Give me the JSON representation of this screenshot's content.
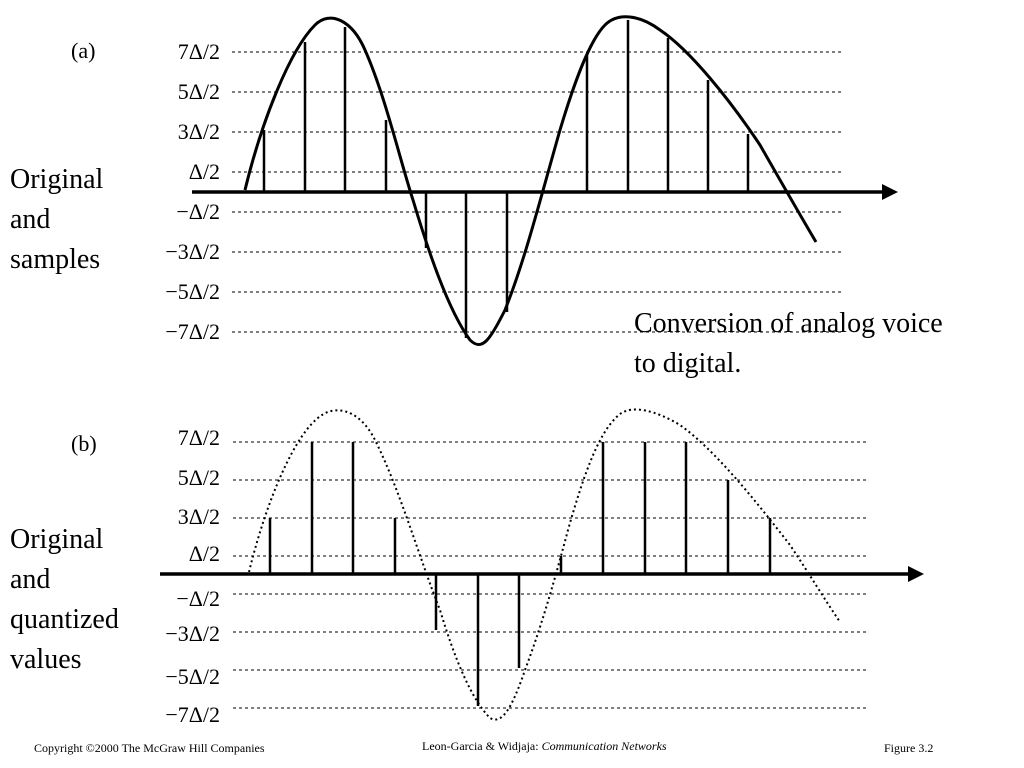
{
  "panel_a": {
    "label": "(a)",
    "description_lines": [
      "Original",
      "and",
      "samples"
    ],
    "level_labels": [
      "7Δ/2",
      "5Δ/2",
      "3Δ/2",
      "Δ/2",
      "−Δ/2",
      "−3Δ/2",
      "−5Δ/2",
      "−7Δ/2"
    ]
  },
  "panel_b": {
    "label": "(b)",
    "description_lines": [
      "Original",
      "and",
      "quantized",
      "values"
    ],
    "level_labels": [
      "7Δ/2",
      "5Δ/2",
      "3Δ/2",
      "Δ/2",
      "−Δ/2",
      "−3Δ/2",
      "−5Δ/2",
      "−7Δ/2"
    ]
  },
  "caption": "Conversion of analog voice to digital.",
  "footer": {
    "copyright": "Copyright ©2000 The McGraw Hill Companies",
    "authors": "Leon-Garcia & Widjaja:",
    "book_title": "Communication Networks",
    "figure": "Figure 3.2"
  }
}
